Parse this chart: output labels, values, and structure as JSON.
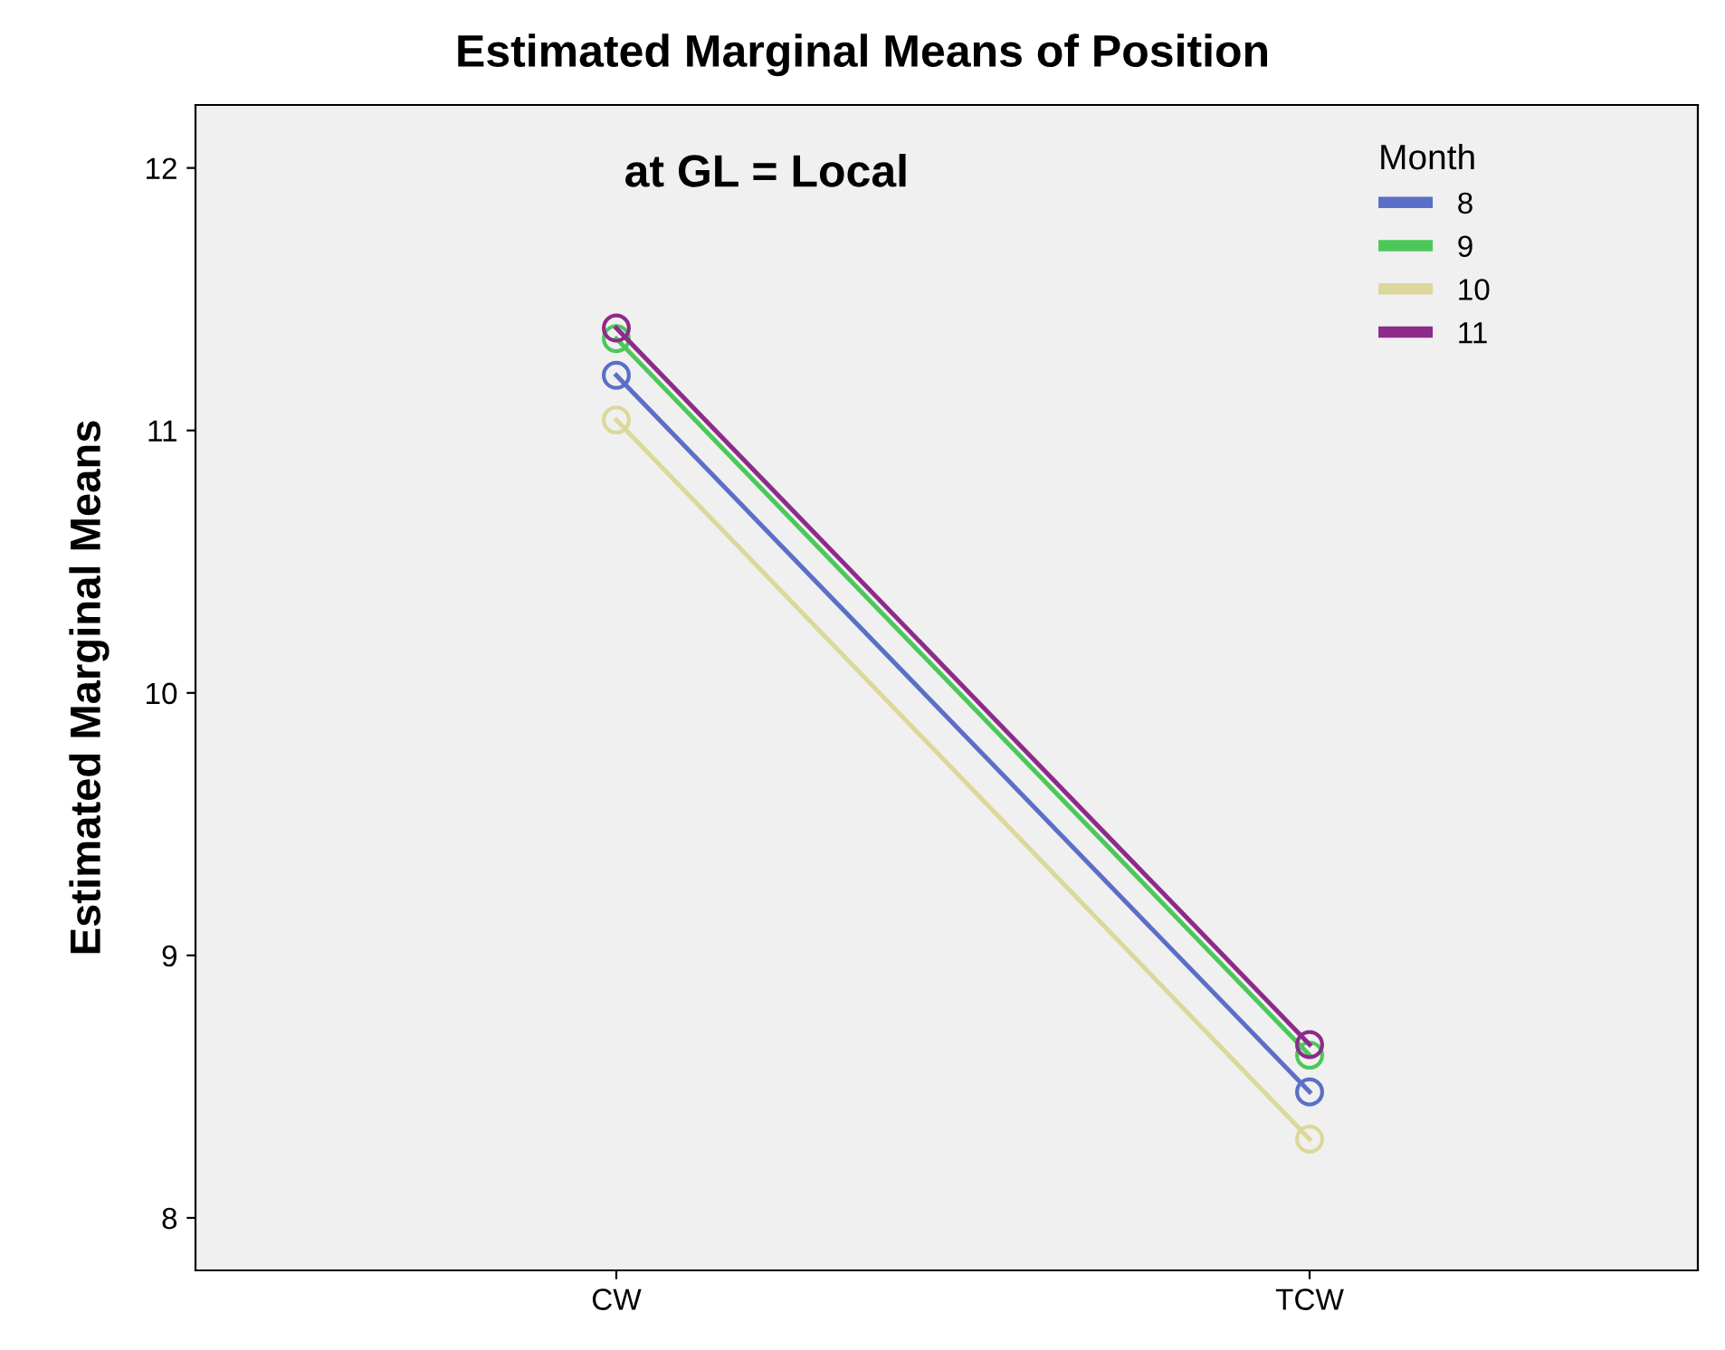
{
  "chart_data": {
    "type": "line",
    "title": "Estimated Marginal Means of Position",
    "subtitle": "at GL = Local",
    "ylabel": "Estimated Marginal Means",
    "legend_title": "Month",
    "categories": [
      "CW",
      "TCW"
    ],
    "series": [
      {
        "name": "8",
        "color": "#5a6fc8",
        "values": [
          11.21,
          8.48
        ]
      },
      {
        "name": "9",
        "color": "#4cc85a",
        "values": [
          11.35,
          8.62
        ]
      },
      {
        "name": "10",
        "color": "#dcd89a",
        "values": [
          11.04,
          8.3
        ]
      },
      {
        "name": "11",
        "color": "#8e2a8a",
        "values": [
          11.39,
          8.66
        ]
      }
    ],
    "ylim": [
      7.8,
      12.24
    ],
    "yticks": [
      8,
      9,
      10,
      11,
      12
    ],
    "marker": "circle",
    "grid": false,
    "legend": "top right"
  }
}
